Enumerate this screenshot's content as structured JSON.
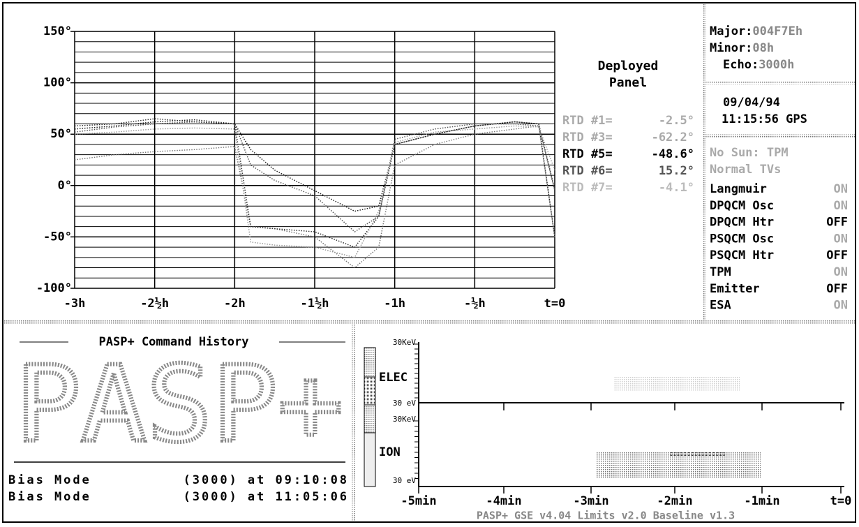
{
  "chart_data": {
    "type": "line",
    "title": "Deployed Panel",
    "x": [
      -3,
      -2.75,
      -2.5,
      -2.25,
      -2,
      -1.9,
      -1.75,
      -1.5,
      -1.25,
      -1.1,
      -1,
      -0.75,
      -0.5,
      -0.25,
      -0.1,
      0
    ],
    "xlim": [
      -3,
      0
    ],
    "xticks": [
      {
        "value": -3,
        "label": "-3h"
      },
      {
        "value": -2.5,
        "label": "-2½h"
      },
      {
        "value": -2,
        "label": "-2h"
      },
      {
        "value": -1.5,
        "label": "-1½h"
      },
      {
        "value": -1,
        "label": "-1h"
      },
      {
        "value": -0.5,
        "label": "-½h"
      },
      {
        "value": 0,
        "label": "t=0"
      }
    ],
    "ylim": [
      -100,
      150
    ],
    "yticks": [
      {
        "value": -100,
        "label": "-100°"
      },
      {
        "value": -50,
        "label": "-50°"
      },
      {
        "value": 0,
        "label": "0°"
      },
      {
        "value": 50,
        "label": "50°"
      },
      {
        "value": 100,
        "label": "100°"
      },
      {
        "value": 150,
        "label": "150°"
      }
    ],
    "grid": true,
    "series": [
      {
        "color": "#222",
        "values": [
          55,
          58,
          62,
          64,
          60,
          35,
          15,
          -5,
          -25,
          -20,
          40,
          50,
          58,
          62,
          60,
          -50
        ]
      },
      {
        "color": "#555",
        "values": [
          52,
          57,
          60,
          62,
          60,
          20,
          5,
          -10,
          -45,
          -30,
          45,
          55,
          60,
          60,
          58,
          -5
        ]
      },
      {
        "color": "#777",
        "values": [
          25,
          30,
          33,
          35,
          38,
          -40,
          -42,
          -50,
          -80,
          -60,
          20,
          40,
          50,
          55,
          58,
          -50
        ]
      },
      {
        "color": "#333",
        "values": [
          58,
          60,
          65,
          62,
          60,
          -40,
          -42,
          -45,
          -60,
          -30,
          40,
          50,
          58,
          62,
          60,
          -4
        ]
      },
      {
        "color": "#999",
        "values": [
          50,
          52,
          55,
          56,
          55,
          -55,
          -58,
          -60,
          -70,
          -25,
          42,
          52,
          55,
          58,
          57,
          15
        ]
      }
    ]
  },
  "readings": [
    {
      "label": "RTD #1=",
      "value": "-2.5°",
      "color": "#aaa"
    },
    {
      "label": "RTD #3=",
      "value": "-62.2°",
      "color": "#aaa"
    },
    {
      "label": "RTD #5=",
      "value": "-48.6°",
      "color": "#000"
    },
    {
      "label": "RTD #6=",
      "value": "15.2°",
      "color": "#555"
    },
    {
      "label": "RTD #7=",
      "value": "-4.1°",
      "color": "#bbb"
    }
  ],
  "header": {
    "major_label": "Major:",
    "major_value": "004F7Eh",
    "minor_label": "Minor:",
    "minor_value": "08h",
    "echo_label": "Echo:",
    "echo_value": "3000h",
    "date": "09/04/94",
    "time": "11:15:56 GPS"
  },
  "status": {
    "notes": [
      {
        "text": "No Sun: TPM"
      },
      {
        "text": "Normal TVs"
      }
    ],
    "items": [
      {
        "name": "Langmuir",
        "state": "ON",
        "color": "#aaa"
      },
      {
        "name": "DPQCM Osc",
        "state": "ON",
        "color": "#aaa"
      },
      {
        "name": "DPQCM Htr",
        "state": "OFF",
        "color": "#000"
      },
      {
        "name": "PSQCM Osc",
        "state": "ON",
        "color": "#aaa"
      },
      {
        "name": "PSQCM Htr",
        "state": "OFF",
        "color": "#000"
      },
      {
        "name": "TPM",
        "state": "ON",
        "color": "#aaa"
      },
      {
        "name": "Emitter",
        "state": "OFF",
        "color": "#000"
      },
      {
        "name": "ESA",
        "state": "ON",
        "color": "#aaa"
      }
    ]
  },
  "history": {
    "title": "PASP+ Command History",
    "logo": "PASP+",
    "entries": [
      "Bias Mode          (3000) at 09:10:08",
      "Bias Mode          (3000) at 11:05:06"
    ]
  },
  "spectrogram": {
    "elec": {
      "label": "ELEC",
      "top": "30KeV",
      "bottom": "30 eV"
    },
    "ion": {
      "label": "ION",
      "top": "30KeV",
      "bottom": "30 eV"
    },
    "x_labels": [
      "-5min",
      "-4min",
      "-3min",
      "-2min",
      "-1min",
      "t=0"
    ],
    "footer": "PASP+ GSE v4.04 Limits v2.0 Baseline v1.3"
  }
}
